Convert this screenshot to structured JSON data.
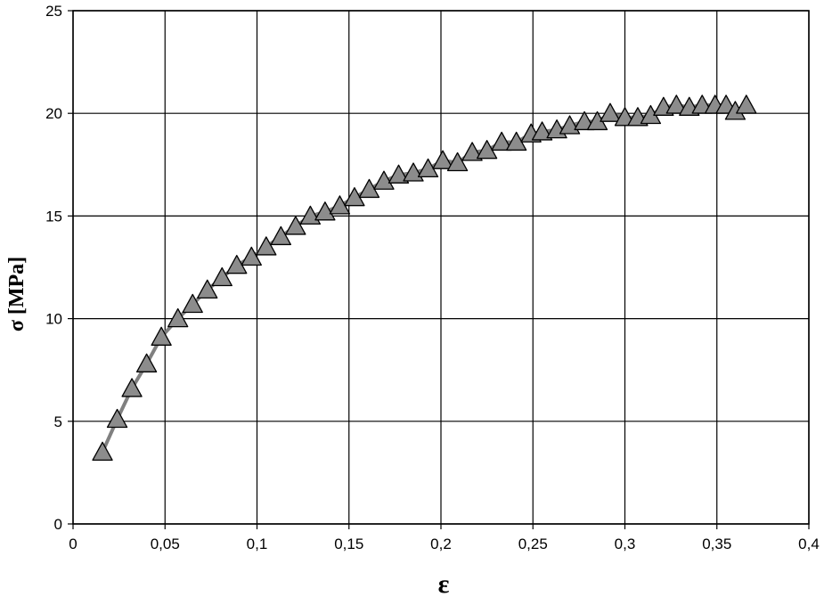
{
  "chart_data": {
    "type": "line",
    "xlabel": "ε",
    "ylabel": "σ [MPa]",
    "xlim": [
      0,
      0.4
    ],
    "ylim": [
      0,
      25
    ],
    "x_ticks": [
      0,
      0.05,
      0.1,
      0.15,
      0.2,
      0.25,
      0.3,
      0.35,
      0.4
    ],
    "x_tick_labels": [
      "0",
      "0,05",
      "0,1",
      "0,15",
      "0,2",
      "0,25",
      "0,3",
      "0,35",
      "0,4"
    ],
    "y_ticks": [
      0,
      5,
      10,
      15,
      20,
      25
    ],
    "y_tick_labels": [
      "0",
      "5",
      "10",
      "15",
      "20",
      "25"
    ],
    "grid": true,
    "legend": "none",
    "series": [
      {
        "color": "#808080",
        "marker": "triangle",
        "marker_color": "#8c8c8c",
        "x": [
          0.016,
          0.024,
          0.032,
          0.04,
          0.048,
          0.057,
          0.065,
          0.073,
          0.081,
          0.089,
          0.097,
          0.105,
          0.113,
          0.121,
          0.129,
          0.137,
          0.145,
          0.153,
          0.161,
          0.169,
          0.177,
          0.185,
          0.193,
          0.201,
          0.209,
          0.217,
          0.225,
          0.233,
          0.241,
          0.249,
          0.255,
          0.263,
          0.27,
          0.278,
          0.285,
          0.292,
          0.3,
          0.307,
          0.314,
          0.321,
          0.328,
          0.335,
          0.342,
          0.349,
          0.355,
          0.36,
          0.366
        ],
        "y": [
          3.5,
          5.1,
          6.6,
          7.8,
          9.1,
          10.0,
          10.7,
          11.4,
          12.0,
          12.6,
          13.0,
          13.5,
          14.0,
          14.5,
          15.0,
          15.2,
          15.5,
          15.9,
          16.3,
          16.7,
          17.0,
          17.1,
          17.3,
          17.7,
          17.6,
          18.1,
          18.2,
          18.6,
          18.6,
          19.0,
          19.1,
          19.2,
          19.4,
          19.6,
          19.6,
          20.0,
          19.8,
          19.8,
          19.9,
          20.3,
          20.4,
          20.3,
          20.4,
          20.4,
          20.4,
          20.1,
          20.4
        ]
      }
    ]
  }
}
